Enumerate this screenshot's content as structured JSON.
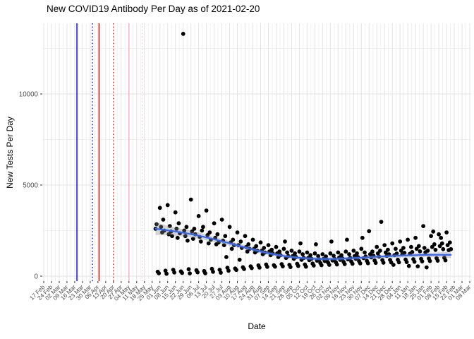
{
  "title": "New COVID19 Antibody Per Day as of 2021-02-20",
  "chart_data": {
    "type": "scatter",
    "title": "New COVID19 Antibody Per Day as of 2021-02-20",
    "xlabel": "Date",
    "ylabel": "New Tests Per Day",
    "grid": true,
    "legend": "none",
    "y_ticks": [
      0,
      5000,
      10000
    ],
    "y_minor_gridlines": [
      2500,
      7500,
      12500
    ],
    "ylim": [
      0,
      13900
    ],
    "x_axis_start_label": "17 Feb",
    "x_tick_interval_days": 7,
    "x_tick_labels": [
      "17 Feb",
      "24 Feb",
      "02 Mar",
      "09 Mar",
      "16 Mar",
      "23 Mar",
      "30 Mar",
      "06 Apr",
      "13 Apr",
      "20 Apr",
      "27 Apr",
      "04 May",
      "11 May",
      "18 May",
      "25 May",
      "01 Jun",
      "08 Jun",
      "15 Jun",
      "22 Jun",
      "29 Jun",
      "06 Jul",
      "13 Jul",
      "20 Jul",
      "27 Jul",
      "03 Aug",
      "10 Aug",
      "17 Aug",
      "24 Aug",
      "31 Aug",
      "07 Sep",
      "14 Sep",
      "21 Sep",
      "28 Sep",
      "05 Oct",
      "12 Oct",
      "19 Oct",
      "26 Oct",
      "02 Nov",
      "09 Nov",
      "16 Nov",
      "23 Nov",
      "30 Nov",
      "07 Dec",
      "14 Dec",
      "21 Dec",
      "28 Dec",
      "04 Jan",
      "11 Jan",
      "18 Jan",
      "25 Jan",
      "01 Feb",
      "08 Feb",
      "15 Feb",
      "22 Feb",
      "01 Mar",
      "08 Mar"
    ],
    "vlines": [
      {
        "day": 30,
        "color": "#0000BB",
        "style": "solid"
      },
      {
        "day": 44,
        "color": "#1111BB",
        "style": "dotted"
      },
      {
        "day": 50,
        "color": "#CC0000",
        "style": "solid"
      },
      {
        "day": 63,
        "color": "#E02020",
        "style": "dotted"
      },
      {
        "day": 77,
        "color": "#F2AEC0",
        "style": "solid"
      },
      {
        "day": 89,
        "color": "#F6C8D3",
        "style": "dotted"
      }
    ],
    "smooth_line": [
      [
        101,
        2600,
        2250,
        2950
      ],
      [
        110,
        2530,
        2260,
        2800
      ],
      [
        120,
        2440,
        2220,
        2660
      ],
      [
        130,
        2340,
        2150,
        2530
      ],
      [
        140,
        2220,
        2050,
        2390
      ],
      [
        150,
        2080,
        1930,
        2230
      ],
      [
        160,
        1930,
        1790,
        2070
      ],
      [
        170,
        1770,
        1640,
        1900
      ],
      [
        180,
        1610,
        1490,
        1730
      ],
      [
        190,
        1450,
        1340,
        1560
      ],
      [
        200,
        1300,
        1200,
        1400
      ],
      [
        210,
        1175,
        1080,
        1270
      ],
      [
        220,
        1080,
        990,
        1170
      ],
      [
        230,
        1010,
        920,
        1100
      ],
      [
        240,
        965,
        875,
        1055
      ],
      [
        250,
        945,
        855,
        1035
      ],
      [
        255,
        940,
        850,
        1030
      ],
      [
        265,
        950,
        860,
        1040
      ],
      [
        275,
        975,
        885,
        1065
      ],
      [
        285,
        1005,
        915,
        1095
      ],
      [
        295,
        1040,
        950,
        1130
      ],
      [
        305,
        1075,
        980,
        1170
      ],
      [
        315,
        1105,
        1005,
        1205
      ],
      [
        325,
        1130,
        1025,
        1235
      ],
      [
        335,
        1150,
        1040,
        1260
      ],
      [
        345,
        1165,
        1045,
        1285
      ],
      [
        355,
        1170,
        1040,
        1300
      ],
      [
        362,
        1170,
        1020,
        1320
      ],
      [
        368,
        1165,
        990,
        1340
      ]
    ],
    "points_day_value": [
      [
        101,
        2600
      ],
      [
        102,
        2850
      ],
      [
        103,
        240
      ],
      [
        104,
        160
      ],
      [
        105,
        3750
      ],
      [
        106,
        2700
      ],
      [
        107,
        2400
      ],
      [
        108,
        3100
      ],
      [
        109,
        2500
      ],
      [
        110,
        300
      ],
      [
        111,
        130
      ],
      [
        112,
        3900
      ],
      [
        113,
        2300
      ],
      [
        114,
        2750
      ],
      [
        115,
        2450
      ],
      [
        116,
        2200
      ],
      [
        117,
        350
      ],
      [
        118,
        200
      ],
      [
        119,
        3500
      ],
      [
        120,
        2600
      ],
      [
        121,
        2100
      ],
      [
        122,
        2900
      ],
      [
        123,
        2350
      ],
      [
        124,
        260
      ],
      [
        125,
        180
      ],
      [
        126,
        13300
      ],
      [
        127,
        2500
      ],
      [
        128,
        2200
      ],
      [
        129,
        2700
      ],
      [
        130,
        1950
      ],
      [
        131,
        380
      ],
      [
        132,
        150
      ],
      [
        133,
        4200
      ],
      [
        134,
        2450
      ],
      [
        135,
        2050
      ],
      [
        136,
        2600
      ],
      [
        137,
        2300
      ],
      [
        138,
        320
      ],
      [
        139,
        210
      ],
      [
        140,
        3300
      ],
      [
        141,
        2150
      ],
      [
        142,
        1900
      ],
      [
        143,
        2500
      ],
      [
        144,
        2700
      ],
      [
        145,
        280
      ],
      [
        146,
        160
      ],
      [
        147,
        3600
      ],
      [
        148,
        2250
      ],
      [
        149,
        1800
      ],
      [
        150,
        2400
      ],
      [
        151,
        2000
      ],
      [
        152,
        400
      ],
      [
        153,
        240
      ],
      [
        154,
        2900
      ],
      [
        155,
        2100
      ],
      [
        156,
        1750
      ],
      [
        157,
        2300
      ],
      [
        158,
        1850
      ],
      [
        159,
        350
      ],
      [
        160,
        190
      ],
      [
        161,
        3100
      ],
      [
        162,
        1950
      ],
      [
        163,
        1700
      ],
      [
        164,
        2200
      ],
      [
        165,
        1050
      ],
      [
        166,
        460
      ],
      [
        167,
        300
      ],
      [
        168,
        2700
      ],
      [
        169,
        1850
      ],
      [
        170,
        1500
      ],
      [
        171,
        2000
      ],
      [
        172,
        1700
      ],
      [
        173,
        420
      ],
      [
        174,
        340
      ],
      [
        175,
        2400
      ],
      [
        176,
        1700
      ],
      [
        177,
        900
      ],
      [
        178,
        1900
      ],
      [
        179,
        1550
      ],
      [
        180,
        490
      ],
      [
        181,
        390
      ],
      [
        182,
        2200
      ],
      [
        183,
        1600
      ],
      [
        184,
        1350
      ],
      [
        185,
        1750
      ],
      [
        186,
        1500
      ],
      [
        187,
        540
      ],
      [
        188,
        440
      ],
      [
        189,
        2000
      ],
      [
        190,
        1500
      ],
      [
        191,
        1300
      ],
      [
        192,
        1650
      ],
      [
        193,
        1400
      ],
      [
        194,
        590
      ],
      [
        195,
        470
      ],
      [
        196,
        1850
      ],
      [
        197,
        1400
      ],
      [
        198,
        1200
      ],
      [
        199,
        1550
      ],
      [
        200,
        1300
      ],
      [
        201,
        640
      ],
      [
        202,
        510
      ],
      [
        203,
        1700
      ],
      [
        204,
        1350
      ],
      [
        205,
        1150
      ],
      [
        206,
        1450
      ],
      [
        207,
        1250
      ],
      [
        208,
        600
      ],
      [
        209,
        520
      ],
      [
        210,
        1600
      ],
      [
        211,
        1250
      ],
      [
        212,
        1050
      ],
      [
        213,
        1350
      ],
      [
        214,
        1150
      ],
      [
        215,
        660
      ],
      [
        216,
        540
      ],
      [
        217,
        1500
      ],
      [
        218,
        1900
      ],
      [
        219,
        1000
      ],
      [
        220,
        1300
      ],
      [
        221,
        1100
      ],
      [
        222,
        620
      ],
      [
        223,
        500
      ],
      [
        224,
        1400
      ],
      [
        225,
        1100
      ],
      [
        226,
        950
      ],
      [
        227,
        1250
      ],
      [
        228,
        1050
      ],
      [
        229,
        680
      ],
      [
        230,
        560
      ],
      [
        231,
        1350
      ],
      [
        232,
        1800
      ],
      [
        233,
        900
      ],
      [
        234,
        1200
      ],
      [
        235,
        1000
      ],
      [
        236,
        640
      ],
      [
        237,
        520
      ],
      [
        238,
        1300
      ],
      [
        239,
        1000
      ],
      [
        240,
        880
      ],
      [
        241,
        1150
      ],
      [
        242,
        950
      ],
      [
        243,
        690
      ],
      [
        244,
        580
      ],
      [
        245,
        1250
      ],
      [
        246,
        1750
      ],
      [
        247,
        850
      ],
      [
        248,
        1100
      ],
      [
        249,
        920
      ],
      [
        250,
        720
      ],
      [
        251,
        600
      ],
      [
        252,
        1200
      ],
      [
        253,
        950
      ],
      [
        254,
        830
      ],
      [
        255,
        1080
      ],
      [
        256,
        900
      ],
      [
        257,
        740
      ],
      [
        258,
        620
      ],
      [
        259,
        1250
      ],
      [
        260,
        1900
      ],
      [
        261,
        860
      ],
      [
        262,
        1120
      ],
      [
        263,
        940
      ],
      [
        264,
        760
      ],
      [
        265,
        640
      ],
      [
        266,
        1300
      ],
      [
        267,
        1020
      ],
      [
        268,
        890
      ],
      [
        269,
        1150
      ],
      [
        270,
        970
      ],
      [
        271,
        780
      ],
      [
        272,
        660
      ],
      [
        273,
        1350
      ],
      [
        274,
        2000
      ],
      [
        275,
        920
      ],
      [
        276,
        1200
      ],
      [
        277,
        1000
      ],
      [
        278,
        800
      ],
      [
        279,
        680
      ],
      [
        280,
        1400
      ],
      [
        281,
        1100
      ],
      [
        282,
        950
      ],
      [
        283,
        1250
      ],
      [
        284,
        1040
      ],
      [
        285,
        820
      ],
      [
        286,
        700
      ],
      [
        287,
        1500
      ],
      [
        288,
        2100
      ],
      [
        289,
        990
      ],
      [
        290,
        1300
      ],
      [
        291,
        1080
      ],
      [
        292,
        840
      ],
      [
        293,
        710
      ],
      [
        294,
        2470
      ],
      [
        295,
        1200
      ],
      [
        296,
        1030
      ],
      [
        297,
        1350
      ],
      [
        298,
        1120
      ],
      [
        299,
        860
      ],
      [
        300,
        730
      ],
      [
        301,
        1600
      ],
      [
        302,
        1250
      ],
      [
        303,
        1070
      ],
      [
        304,
        1400
      ],
      [
        305,
        2980
      ],
      [
        306,
        880
      ],
      [
        307,
        740
      ],
      [
        308,
        1700
      ],
      [
        309,
        1300
      ],
      [
        310,
        1110
      ],
      [
        311,
        1450
      ],
      [
        312,
        1200
      ],
      [
        313,
        890
      ],
      [
        314,
        750
      ],
      [
        315,
        1800
      ],
      [
        316,
        620
      ],
      [
        317,
        1150
      ],
      [
        318,
        1500
      ],
      [
        319,
        1240
      ],
      [
        320,
        900
      ],
      [
        321,
        760
      ],
      [
        322,
        1900
      ],
      [
        323,
        1400
      ],
      [
        324,
        1190
      ],
      [
        325,
        1550
      ],
      [
        326,
        1280
      ],
      [
        327,
        910
      ],
      [
        328,
        770
      ],
      [
        329,
        2000
      ],
      [
        330,
        560
      ],
      [
        331,
        1230
      ],
      [
        332,
        1600
      ],
      [
        333,
        1320
      ],
      [
        334,
        930
      ],
      [
        335,
        790
      ],
      [
        336,
        2100
      ],
      [
        337,
        1500
      ],
      [
        338,
        540
      ],
      [
        339,
        1650
      ],
      [
        340,
        1360
      ],
      [
        341,
        950
      ],
      [
        342,
        810
      ],
      [
        343,
        2750
      ],
      [
        344,
        1550
      ],
      [
        345,
        1310
      ],
      [
        346,
        480
      ],
      [
        347,
        1400
      ],
      [
        348,
        970
      ],
      [
        349,
        830
      ],
      [
        350,
        2200
      ],
      [
        351,
        1600
      ],
      [
        352,
        2450
      ],
      [
        353,
        1750
      ],
      [
        354,
        1440
      ],
      [
        355,
        990
      ],
      [
        356,
        850
      ],
      [
        357,
        2300
      ],
      [
        358,
        1650
      ],
      [
        359,
        2100
      ],
      [
        360,
        1800
      ],
      [
        361,
        1480
      ],
      [
        362,
        1010
      ],
      [
        363,
        870
      ],
      [
        364,
        2400
      ],
      [
        365,
        1700
      ],
      [
        366,
        1430
      ],
      [
        367,
        1850
      ],
      [
        368,
        1480
      ]
    ],
    "colors": {
      "point": "#000000",
      "smooth": "#3366FF",
      "ci_band": "#8A8A8A",
      "grid_major": "#E3E3E3",
      "grid_minor": "#F0F0F0",
      "tick_label": "#4D4D4D",
      "tick_mark": "#333333"
    }
  }
}
